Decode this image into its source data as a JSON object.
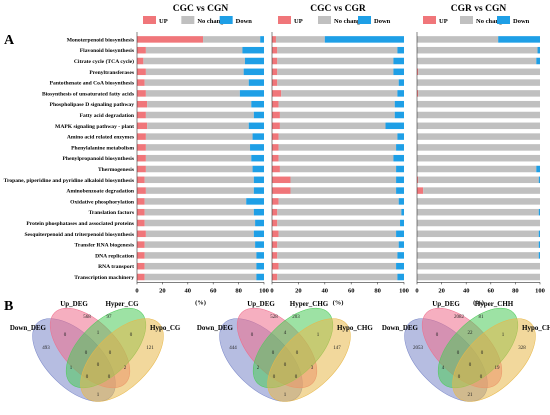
{
  "panels": {
    "a": "A",
    "b": "B"
  },
  "x_axis_unit": "(%)",
  "colors": {
    "up": "#f0767a",
    "no_change": "#c0c0c0",
    "down": "#1e9fe6",
    "venn1": "#7a87c8",
    "venn2": "#ee6e8c",
    "venn3": "#4ccb59",
    "venn4": "#e8b84a"
  },
  "chart_data": [
    {
      "type": "bar",
      "orientation": "horizontal",
      "stacked": true,
      "title": "CGC vs CGN",
      "legend": [
        "UP",
        "No change",
        "Down"
      ],
      "legend_position": "top",
      "xlim": [
        0,
        100
      ],
      "xticks": [
        "0",
        "20",
        "40",
        "60",
        "80",
        "100"
      ],
      "xlabel": "(%)",
      "categories": [
        "Monoterpenoid biosynthesis",
        "Flavonoid biosynthesis",
        "Citrate cycle (TCA cycle)",
        "Prenyltransferases",
        "Pantothenate and CoA biosynthesis",
        "Biosynthesis of unsaturated fatty acids",
        "Phospholipase D signaling pathway",
        "Fatty acid degradation",
        "MAPK signaling pathway - plant",
        "Amino acid related enzymes",
        "Phenylalanine metabolism",
        "Phenylpropanoid biosynthesis",
        "Thermogenesis",
        "Tropane, piperidine and pyridine alkaloid biosynthesis",
        "Aminobenzoate degradation",
        "Oxidative phosphorylation",
        "Translation factors",
        "Protein phosphatases and associated proteins",
        "Sesquiterpenoid and triterpenoid biosynthesis",
        "Transfer RNA biogenesis",
        "DNA replication",
        "RNA transport",
        "Transcription machinery"
      ],
      "series": [
        {
          "name": "UP",
          "values": [
            52,
            7,
            5,
            7,
            6,
            7,
            8,
            7,
            8,
            7,
            7,
            7,
            7,
            6,
            7,
            6,
            6,
            6,
            7,
            6,
            6,
            6,
            6
          ]
        },
        {
          "name": "No change",
          "values": [
            45,
            76,
            80,
            77,
            82,
            74,
            82,
            85,
            80,
            84,
            82,
            83,
            84,
            86,
            85,
            80,
            86,
            87,
            85,
            87,
            88,
            88,
            88
          ]
        },
        {
          "name": "Down",
          "values": [
            3,
            17,
            15,
            16,
            12,
            19,
            10,
            8,
            12,
            9,
            11,
            10,
            9,
            8,
            8,
            14,
            8,
            7,
            8,
            7,
            6,
            6,
            6
          ]
        }
      ]
    },
    {
      "type": "bar",
      "orientation": "horizontal",
      "stacked": true,
      "title": "CGC vs CGR",
      "legend": [
        "UP",
        "No change",
        "Down"
      ],
      "legend_position": "top",
      "xlim": [
        0,
        100
      ],
      "xticks": [
        "0",
        "20",
        "40",
        "60",
        "80",
        "100"
      ],
      "xlabel": "(%)",
      "categories": [
        "Monoterpenoid biosynthesis",
        "Flavonoid biosynthesis",
        "Citrate cycle (TCA cycle)",
        "Prenyltransferases",
        "Pantothenate and CoA biosynthesis",
        "Biosynthesis of unsaturated fatty acids",
        "Phospholipase D signaling pathway",
        "Fatty acid degradation",
        "MAPK signaling pathway - plant",
        "Amino acid related enzymes",
        "Phenylalanine metabolism",
        "Phenylpropanoid biosynthesis",
        "Thermogenesis",
        "Tropane, piperidine and pyridine alkaloid biosynthesis",
        "Aminobenzoate degradation",
        "Oxidative phosphorylation",
        "Translation factors",
        "Protein phosphatases and associated proteins",
        "Sesquiterpenoid and triterpenoid biosynthesis",
        "Transfer RNA biogenesis",
        "DNA replication",
        "RNA transport",
        "Transcription machinery"
      ],
      "series": [
        {
          "name": "UP",
          "values": [
            3,
            4,
            4,
            4,
            4,
            7,
            5,
            6,
            6,
            5,
            5,
            5,
            6,
            14,
            14,
            5,
            4,
            4,
            5,
            4,
            4,
            5,
            4
          ]
        },
        {
          "name": "No change",
          "values": [
            37,
            91,
            88,
            88,
            92,
            88,
            88,
            87,
            80,
            90,
            89,
            87,
            88,
            80,
            80,
            91,
            94,
            93,
            89,
            92,
            91,
            89,
            91
          ]
        },
        {
          "name": "Down",
          "values": [
            60,
            5,
            8,
            8,
            4,
            5,
            7,
            7,
            14,
            5,
            6,
            8,
            6,
            6,
            6,
            4,
            2,
            3,
            6,
            4,
            5,
            6,
            5
          ]
        }
      ]
    },
    {
      "type": "bar",
      "orientation": "horizontal",
      "stacked": true,
      "title": "CGR vs CGN",
      "legend": [
        "UP",
        "No change",
        "Down"
      ],
      "legend_position": "top",
      "xlim": [
        0,
        100
      ],
      "xticks": [
        "0",
        "20",
        "40",
        "60",
        "80",
        "100"
      ],
      "xlabel": "(%)",
      "categories": [
        "Monoterpenoid biosynthesis",
        "Flavonoid biosynthesis",
        "Citrate cycle (TCA cycle)",
        "Prenyltransferases",
        "Pantothenate and CoA biosynthesis",
        "Biosynthesis of unsaturated fatty acids",
        "Phospholipase D signaling pathway",
        "Fatty acid degradation",
        "MAPK signaling pathway - plant",
        "Amino acid related enzymes",
        "Phenylalanine metabolism",
        "Phenylpropanoid biosynthesis",
        "Thermogenesis",
        "Tropane, piperidine and pyridine alkaloid biosynthesis",
        "Aminobenzoate degradation",
        "Oxidative phosphorylation",
        "Translation factors",
        "Protein phosphatases and associated proteins",
        "Sesquiterpenoid and triterpenoid biosynthesis",
        "Transfer RNA biogenesis",
        "DNA replication",
        "RNA transport",
        "Transcription machinery"
      ],
      "series": [
        {
          "name": "UP",
          "values": [
            0,
            0,
            0,
            1,
            0,
            1,
            0,
            0,
            0,
            0,
            0,
            0,
            0,
            1,
            5,
            0,
            0,
            0,
            0,
            0,
            0,
            0,
            0
          ]
        },
        {
          "name": "No change",
          "values": [
            66,
            98,
            97,
            99,
            100,
            99,
            100,
            100,
            100,
            100,
            100,
            100,
            97,
            98,
            95,
            100,
            99,
            100,
            99,
            99,
            99,
            100,
            100
          ]
        },
        {
          "name": "Down",
          "values": [
            34,
            2,
            3,
            0,
            0,
            0,
            0,
            0,
            0,
            0,
            0,
            0,
            3,
            1,
            0,
            0,
            1,
            0,
            1,
            1,
            1,
            0,
            0
          ]
        }
      ]
    }
  ],
  "venns": [
    {
      "sets": [
        "Down_DEG",
        "Up_DEG",
        "Hyper_CG",
        "Hypo_CG"
      ],
      "regions": [
        {
          "key": "A",
          "label": "493"
        },
        {
          "key": "B",
          "label": "568"
        },
        {
          "key": "C",
          "label": "97"
        },
        {
          "key": "D",
          "label": "121"
        },
        {
          "key": "AB",
          "label": "0"
        },
        {
          "key": "BC",
          "label": "1"
        },
        {
          "key": "CD",
          "label": "0"
        },
        {
          "key": "AC",
          "label": "1"
        },
        {
          "key": "BD",
          "label": "2"
        },
        {
          "key": "AD",
          "label": "1"
        },
        {
          "key": "ABC",
          "label": "0"
        },
        {
          "key": "BCD",
          "label": "0"
        },
        {
          "key": "ACD",
          "label": "0"
        },
        {
          "key": "ABD",
          "label": "0"
        },
        {
          "key": "ABCD",
          "label": "0"
        }
      ]
    },
    {
      "sets": [
        "Down_DEG",
        "Up_DEG",
        "Hyper_CHG",
        "Hypo_CHG"
      ],
      "regions": [
        {
          "key": "A",
          "label": "444"
        },
        {
          "key": "B",
          "label": "528"
        },
        {
          "key": "C",
          "label": "203"
        },
        {
          "key": "D",
          "label": "147"
        },
        {
          "key": "AB",
          "label": "0"
        },
        {
          "key": "BC",
          "label": "4"
        },
        {
          "key": "CD",
          "label": "1"
        },
        {
          "key": "AC",
          "label": "2"
        },
        {
          "key": "BD",
          "label": "3"
        },
        {
          "key": "AD",
          "label": "1"
        },
        {
          "key": "ABC",
          "label": "0"
        },
        {
          "key": "BCD",
          "label": "0"
        },
        {
          "key": "ACD",
          "label": "0"
        },
        {
          "key": "ABD",
          "label": "0"
        },
        {
          "key": "ABCD",
          "label": "0"
        }
      ]
    },
    {
      "sets": [
        "Down_DEG",
        "Up_DEG",
        "Hyper_CHH",
        "Hypo_CHH"
      ],
      "regions": [
        {
          "key": "A",
          "label": "2053"
        },
        {
          "key": "B",
          "label": "2082"
        },
        {
          "key": "C",
          "label": "81"
        },
        {
          "key": "D",
          "label": "328"
        },
        {
          "key": "AB",
          "label": "0"
        },
        {
          "key": "BC",
          "label": "22"
        },
        {
          "key": "CD",
          "label": "1"
        },
        {
          "key": "AC",
          "label": "4"
        },
        {
          "key": "BD",
          "label": "19"
        },
        {
          "key": "AD",
          "label": "21"
        },
        {
          "key": "ABC",
          "label": "0"
        },
        {
          "key": "BCD",
          "label": "0"
        },
        {
          "key": "ACD",
          "label": "0"
        },
        {
          "key": "ABD",
          "label": "0"
        },
        {
          "key": "ABCD",
          "label": "0"
        }
      ]
    }
  ]
}
